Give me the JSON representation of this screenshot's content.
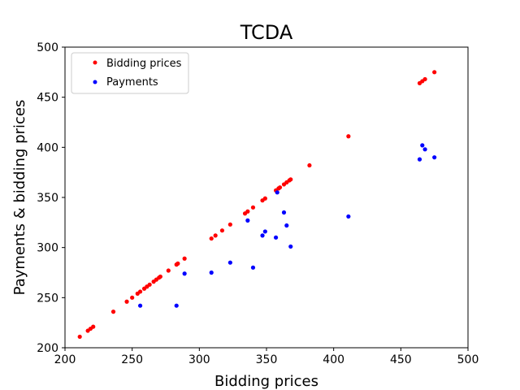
{
  "chart_data": {
    "type": "scatter",
    "title": "TCDA",
    "xlabel": "Bidding prices",
    "ylabel": "Payments & bidding prices",
    "xlim": [
      200,
      500
    ],
    "ylim": [
      200,
      500
    ],
    "xticks": [
      200,
      250,
      300,
      350,
      400,
      450,
      500
    ],
    "yticks": [
      200,
      250,
      300,
      350,
      400,
      450,
      500
    ],
    "grid": false,
    "legend_position": "top-left",
    "series": [
      {
        "name": "Bidding prices",
        "color": "#ff0000",
        "points": [
          [
            211,
            211
          ],
          [
            217,
            217
          ],
          [
            219,
            219
          ],
          [
            221,
            221
          ],
          [
            236,
            236
          ],
          [
            246,
            246
          ],
          [
            250,
            250
          ],
          [
            254,
            254
          ],
          [
            256,
            256
          ],
          [
            259,
            259
          ],
          [
            261,
            261
          ],
          [
            263,
            263
          ],
          [
            266,
            266
          ],
          [
            268,
            268
          ],
          [
            270,
            270
          ],
          [
            271,
            271
          ],
          [
            277,
            277
          ],
          [
            283,
            283
          ],
          [
            284,
            284
          ],
          [
            289,
            289
          ],
          [
            309,
            309
          ],
          [
            312,
            312
          ],
          [
            317,
            317
          ],
          [
            323,
            323
          ],
          [
            334,
            334
          ],
          [
            336,
            336
          ],
          [
            340,
            340
          ],
          [
            347,
            347
          ],
          [
            349,
            349
          ],
          [
            357,
            357
          ],
          [
            359,
            359
          ],
          [
            360,
            360
          ],
          [
            363,
            363
          ],
          [
            365,
            365
          ],
          [
            367,
            367
          ],
          [
            368,
            368
          ],
          [
            382,
            382
          ],
          [
            411,
            411
          ],
          [
            464,
            464
          ],
          [
            466,
            466
          ],
          [
            468,
            468
          ],
          [
            475,
            475
          ]
        ]
      },
      {
        "name": "Payments",
        "color": "#0000ff",
        "points": [
          [
            256,
            242
          ],
          [
            283,
            242
          ],
          [
            289,
            274
          ],
          [
            309,
            275
          ],
          [
            323,
            285
          ],
          [
            336,
            327
          ],
          [
            340,
            280
          ],
          [
            347,
            312
          ],
          [
            349,
            316
          ],
          [
            357,
            310
          ],
          [
            358,
            355
          ],
          [
            363,
            335
          ],
          [
            365,
            322
          ],
          [
            368,
            301
          ],
          [
            411,
            331
          ],
          [
            464,
            388
          ],
          [
            466,
            402
          ],
          [
            468,
            398
          ],
          [
            475,
            390
          ]
        ]
      }
    ]
  }
}
